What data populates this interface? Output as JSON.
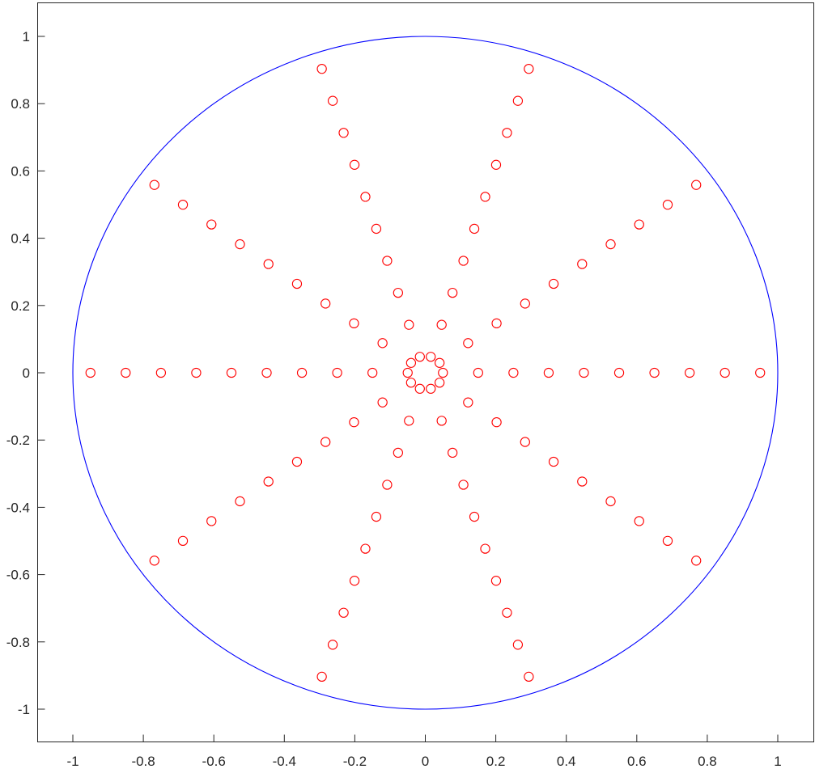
{
  "chart_data": {
    "type": "scatter",
    "title": "",
    "xlabel": "",
    "ylabel": "",
    "xlim": [
      -1,
      1
    ],
    "ylim": [
      -1,
      1
    ],
    "grid": false,
    "legend": "none",
    "xticks": [
      "-1",
      "-0.8",
      "-0.6",
      "-0.4",
      "-0.2",
      "0",
      "0.2",
      "0.4",
      "0.6",
      "0.8",
      "1"
    ],
    "yticks": [
      "1",
      "0.8",
      "0.6",
      "0.4",
      "0.2",
      "0",
      "-0.2",
      "-0.4",
      "-0.6",
      "-0.8",
      "-1"
    ],
    "boundary": {
      "kind": "circle",
      "center": [
        0,
        0
      ],
      "radius": 1,
      "color": "#0000ff"
    },
    "points": {
      "marker": "circle-open",
      "color": "#ff0000",
      "spokes": 10,
      "radii": [
        0.05,
        0.15,
        0.25,
        0.35,
        0.45,
        0.55,
        0.65,
        0.75,
        0.85,
        0.95
      ],
      "angles_deg": [
        0,
        36,
        72,
        108,
        144,
        180,
        216,
        252,
        288,
        324
      ]
    }
  }
}
